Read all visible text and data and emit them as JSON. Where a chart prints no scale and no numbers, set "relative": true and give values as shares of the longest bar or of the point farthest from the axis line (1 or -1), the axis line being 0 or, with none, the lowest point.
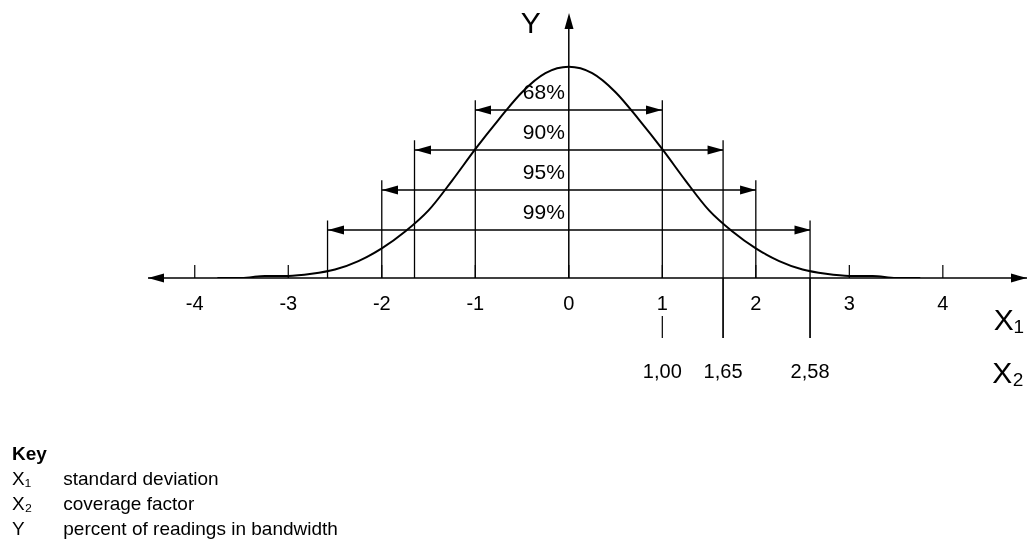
{
  "chart_data": {
    "type": "line",
    "xlabel": "X₁",
    "x2label": "X₂",
    "ylabel": "Y",
    "relative": true,
    "x": [
      -3.75,
      -3.5,
      -3.25,
      -3,
      -2.75,
      -2.5,
      -2.25,
      -2,
      -1.75,
      -1.5,
      -1.25,
      -1,
      -0.75,
      -0.5,
      -0.25,
      0,
      0.25,
      0.5,
      0.75,
      1,
      1.25,
      1.5,
      1.75,
      2,
      2.25,
      2.5,
      2.75,
      3,
      3.25,
      3.5,
      3.75
    ],
    "series": [
      {
        "color": "#000000",
        "values": [
          0,
          0,
          0.01,
          0.01,
          0.02,
          0.04,
          0.08,
          0.14,
          0.22,
          0.32,
          0.46,
          0.61,
          0.75,
          0.88,
          0.97,
          1,
          0.97,
          0.88,
          0.75,
          0.61,
          0.46,
          0.32,
          0.22,
          0.14,
          0.08,
          0.04,
          0.02,
          0.01,
          0.01,
          0,
          0
        ]
      }
    ],
    "xlim": [
      -4.5,
      4.9
    ],
    "xticks": [
      -4,
      -3,
      -2,
      -1,
      0,
      1,
      2,
      3,
      4
    ],
    "x2lim": [
      -4.5,
      4.9
    ],
    "x2ticks": [
      {
        "value": 1,
        "label": "1,00"
      },
      {
        "value": 1.65,
        "label": "1,65"
      },
      {
        "value": 2.58,
        "label": "2,58"
      }
    ],
    "ref_lines": [
      {
        "axis": "x",
        "value": -2.58
      },
      {
        "axis": "x",
        "value": -2
      },
      {
        "axis": "x",
        "value": -1.65
      },
      {
        "axis": "x",
        "value": -1
      },
      {
        "axis": "x",
        "value": 1
      },
      {
        "axis": "x",
        "value": 1.65
      },
      {
        "axis": "x",
        "value": 2
      },
      {
        "axis": "x",
        "value": 2.58
      }
    ],
    "marker": "none",
    "annotations": [
      "68%",
      "90%",
      "95%",
      "99%",
      "Key",
      "X₁ standard deviation",
      "X₂ coverage factor",
      "Y percent of readings in bandwidth"
    ]
  }
}
